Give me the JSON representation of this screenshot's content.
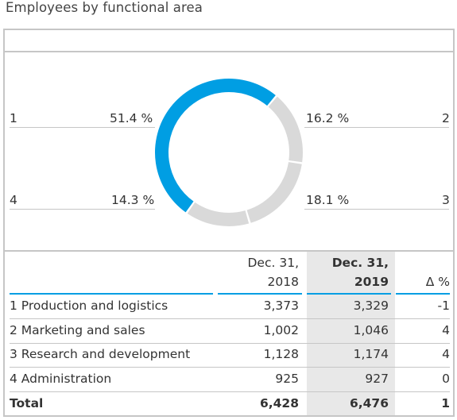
{
  "title": "Employees by functional area",
  "chart_data": {
    "type": "pie",
    "labels": [
      "1",
      "2",
      "3",
      "4"
    ],
    "values": [
      51.4,
      16.2,
      18.1,
      14.3
    ],
    "value_labels": [
      "51.4 %",
      "16.2 %",
      "18.1 %",
      "14.3 %"
    ],
    "colors": [
      "#009ee3",
      "#d9d9d9",
      "#d9d9d9",
      "#d9d9d9"
    ],
    "donut": true
  },
  "table": {
    "headers": {
      "col1_line1": "Dec. 31,",
      "col1_line2": "2018",
      "col2_line1": "Dec. 31,",
      "col2_line2": "2019",
      "col3": "Δ %"
    },
    "rows": [
      {
        "label": "1 Production and logistics",
        "v2018": "3,373",
        "v2019": "3,329",
        "delta": "-1"
      },
      {
        "label": "2 Marketing and sales",
        "v2018": "1,002",
        "v2019": "1,046",
        "delta": "4"
      },
      {
        "label": "3 Research and development",
        "v2018": "1,128",
        "v2019": "1,174",
        "delta": "4"
      },
      {
        "label": "4 Administration",
        "v2018": "925",
        "v2019": "927",
        "delta": "0"
      }
    ],
    "total": {
      "label": "Total",
      "v2018": "6,428",
      "v2019": "6,476",
      "delta": "1"
    }
  }
}
